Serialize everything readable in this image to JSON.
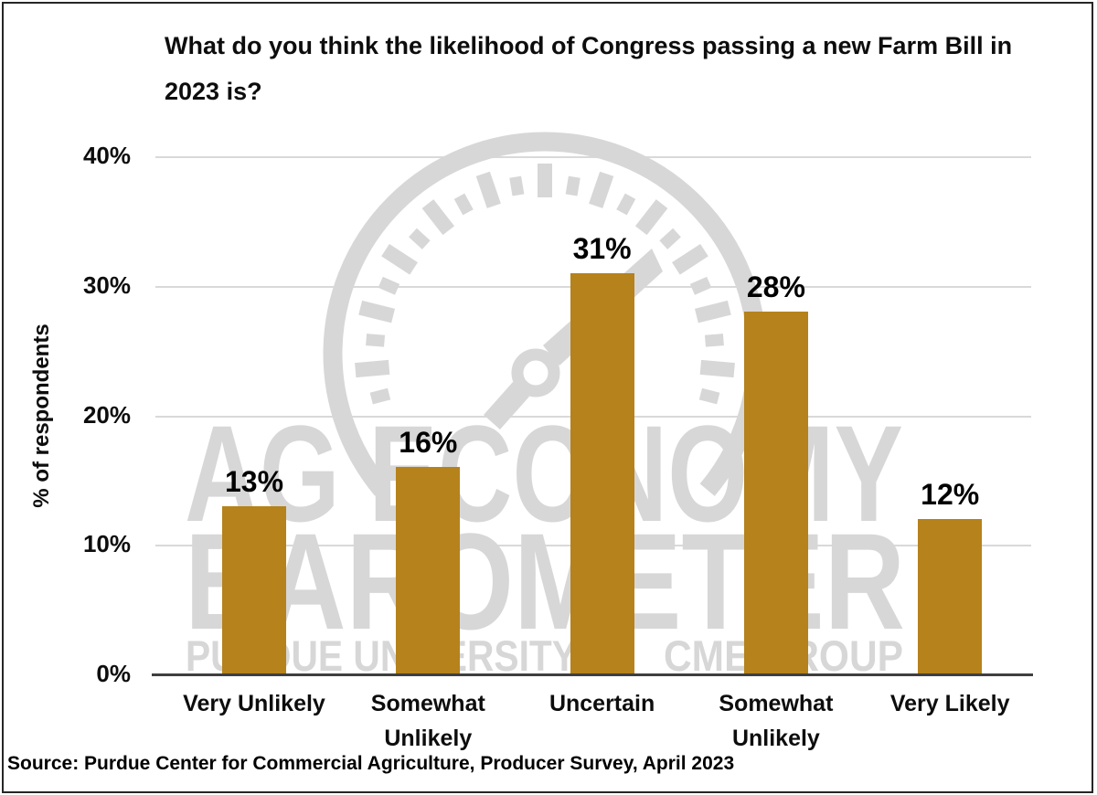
{
  "chart_data": {
    "type": "bar",
    "title": "What do you think the likelihood of Congress passing a new Farm Bill in 2023 is?",
    "categories": [
      "Very Unlikely",
      "Somewhat Unlikely",
      "Uncertain",
      "Somewhat Unlikely",
      "Very Likely"
    ],
    "values": [
      13,
      16,
      31,
      28,
      12
    ],
    "value_labels": [
      "13%",
      "16%",
      "31%",
      "28%",
      "12%"
    ],
    "ylabel": "% of respondents",
    "xlabel": "",
    "ylim": [
      0,
      40
    ],
    "ytick_labels": [
      "0%",
      "10%",
      "20%",
      "30%",
      "40%"
    ],
    "grid": true,
    "legend": "none",
    "source": "Source: Purdue Center for Commercial Agriculture, Producer Survey, April 2023",
    "watermark": {
      "line1": "AG ECONOMY",
      "line2": "BAROMETER",
      "line3_left": "PURDUE UNIVERSITY",
      "line3_right": "CME GROUP"
    },
    "colors": {
      "bar": "#B5821B",
      "watermark": "#D7D7D7",
      "gridline": "#D9D9D9",
      "axis": "#3F3F3F"
    }
  }
}
